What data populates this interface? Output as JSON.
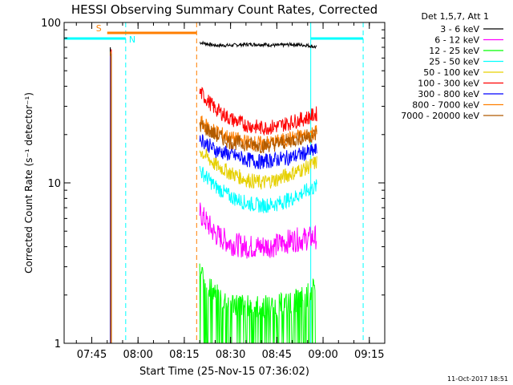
{
  "chart_data": {
    "type": "line",
    "title": "HESSI Observing Summary Count Rates, Corrected",
    "xlabel": "Start Time (25-Nov-15 07:36:02)",
    "ylabel": "Corrected Count Rate (s⁻¹ detector⁻¹)",
    "yscale": "log",
    "ylim": [
      1,
      100
    ],
    "xlim": [
      "07:36:02",
      "09:20:00"
    ],
    "x_ticks": [
      "07:45",
      "08:00",
      "08:15",
      "08:30",
      "08:45",
      "09:00",
      "09:15"
    ],
    "y_ticks": [
      "1",
      "10",
      "100"
    ],
    "legend_title": "Det 1,5,7, Att 1",
    "legend_position": "right",
    "timestamp": "11-Oct-2017 18:51",
    "series": [
      {
        "name": "3 - 6 keV",
        "color": "#000000",
        "x": [
          "07:51",
          "08:20",
          "08:25",
          "08:30",
          "08:35",
          "08:40",
          "08:45",
          "08:50",
          "08:55",
          "08:58"
        ],
        "values": [
          70,
          75,
          72,
          72,
          73,
          73,
          72,
          73,
          72,
          70
        ]
      },
      {
        "name": "6 - 12 keV",
        "color": "#ff00ff",
        "x": [
          "07:51",
          "08:20",
          "08:25",
          "08:30",
          "08:35",
          "08:40",
          "08:45",
          "08:50",
          "08:55",
          "08:58"
        ],
        "values": [
          50,
          6.5,
          4.8,
          4.2,
          4.0,
          4.0,
          4.1,
          4.4,
          4.5,
          4.6
        ]
      },
      {
        "name": "12 - 25 keV",
        "color": "#00ff00",
        "x": [
          "07:51",
          "08:20",
          "08:25",
          "08:30",
          "08:35",
          "08:40",
          "08:45",
          "08:50",
          "08:55",
          "08:58"
        ],
        "values": [
          40,
          2.8,
          2.0,
          1.8,
          1.7,
          1.7,
          1.7,
          1.8,
          2.0,
          2.2
        ]
      },
      {
        "name": "25 - 50 keV",
        "color": "#00ffff",
        "x": [
          "07:51",
          "08:20",
          "08:25",
          "08:30",
          "08:35",
          "08:40",
          "08:45",
          "08:50",
          "08:55",
          "08:58"
        ],
        "values": [
          60,
          12,
          9.5,
          8.2,
          7.5,
          7.2,
          7.4,
          8.0,
          9.0,
          9.5
        ]
      },
      {
        "name": "50 - 100 keV",
        "color": "#e6d000",
        "x": [
          "07:51",
          "08:20",
          "08:25",
          "08:30",
          "08:35",
          "08:40",
          "08:45",
          "08:50",
          "08:55",
          "08:58"
        ],
        "values": [
          65,
          16,
          13,
          11.5,
          10.5,
          10,
          10.5,
          11.5,
          12.5,
          13.5
        ]
      },
      {
        "name": "100 - 300 keV",
        "color": "#ff0000",
        "x": [
          "07:51",
          "08:20",
          "08:25",
          "08:30",
          "08:35",
          "08:40",
          "08:45",
          "08:50",
          "08:55",
          "08:58"
        ],
        "values": [
          68,
          37,
          29,
          25,
          23,
          22,
          22.5,
          24,
          25.5,
          27
        ]
      },
      {
        "name": "300 - 800 keV",
        "color": "#0000ff",
        "x": [
          "07:51",
          "08:20",
          "08:25",
          "08:30",
          "08:35",
          "08:40",
          "08:45",
          "08:50",
          "08:55",
          "08:58"
        ],
        "values": [
          62,
          19,
          16,
          15,
          14,
          13.5,
          14,
          14.5,
          15.5,
          16
        ]
      },
      {
        "name": "800 - 7000 keV",
        "color": "#ff7f00",
        "x": [
          "07:51",
          "08:20",
          "08:25",
          "08:30",
          "08:35",
          "08:40",
          "08:45",
          "08:50",
          "08:55",
          "08:58"
        ],
        "values": [
          66,
          24,
          21,
          19,
          18,
          17.5,
          18,
          19,
          20,
          21
        ]
      },
      {
        "name": "7000 - 20000 keV",
        "color": "#b05a00",
        "x": [
          "07:51",
          "08:20",
          "08:25",
          "08:30",
          "08:35",
          "08:40",
          "08:45",
          "08:50",
          "08:55",
          "08:58"
        ],
        "values": [
          64,
          23,
          20,
          18,
          17.5,
          17,
          17.5,
          18.5,
          19.5,
          20
        ]
      }
    ],
    "flags": [
      {
        "label": "S",
        "color": "#ff7f00",
        "start": "07:50",
        "end": "08:19"
      },
      {
        "label": "N",
        "color": "#00ffff",
        "start": "07:36:02",
        "end": "07:56"
      },
      {
        "label": "",
        "color": "#00ffff",
        "start": "08:56",
        "end": "09:13"
      }
    ],
    "vlines": [
      {
        "time": "07:56",
        "color": "#00ffff",
        "style": "dashed"
      },
      {
        "time": "08:19",
        "color": "#ff7f00",
        "style": "dashed"
      },
      {
        "time": "08:56",
        "color": "#00ffff",
        "style": "solid"
      },
      {
        "time": "09:13",
        "color": "#00ffff",
        "style": "dashed"
      }
    ]
  }
}
